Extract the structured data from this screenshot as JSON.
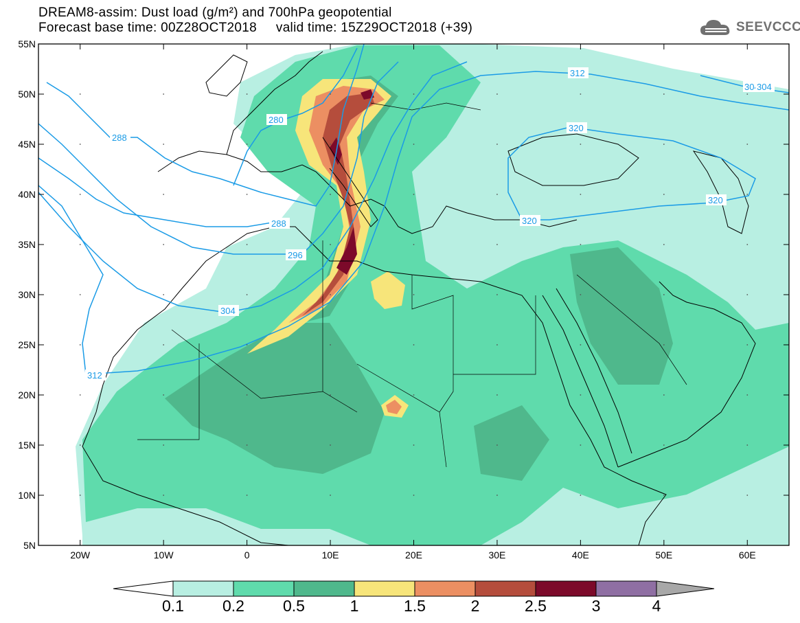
{
  "header": {
    "line1": "DREAM8-assim: Dust load (g/m²) and 700hPa geopotential",
    "line2_left": "Forecast base time: 00Z28OCT2018",
    "line2_right": "valid time: 15Z29OCT2018 (+39)"
  },
  "logo": {
    "text": "SEEVCCC",
    "icon": "cloud-icon"
  },
  "map": {
    "lon_range": [
      -25,
      65
    ],
    "lat_range": [
      5,
      55
    ],
    "lon_ticks": [
      {
        "v": -20,
        "label": "20W"
      },
      {
        "v": -10,
        "label": "10W"
      },
      {
        "v": 0,
        "label": "0"
      },
      {
        "v": 10,
        "label": "10E"
      },
      {
        "v": 20,
        "label": "20E"
      },
      {
        "v": 30,
        "label": "30E"
      },
      {
        "v": 40,
        "label": "40E"
      },
      {
        "v": 50,
        "label": "50E"
      },
      {
        "v": 60,
        "label": "60E"
      }
    ],
    "lat_ticks": [
      {
        "v": 55,
        "label": "55N"
      },
      {
        "v": 50,
        "label": "50N"
      },
      {
        "v": 45,
        "label": "45N"
      },
      {
        "v": 40,
        "label": "40N"
      },
      {
        "v": 35,
        "label": "35N"
      },
      {
        "v": 30,
        "label": "30N"
      },
      {
        "v": 25,
        "label": "25N"
      },
      {
        "v": 20,
        "label": "20N"
      },
      {
        "v": 15,
        "label": "15N"
      },
      {
        "v": 10,
        "label": "10N"
      },
      {
        "v": 5,
        "label": "5N"
      }
    ],
    "contour_labels": [
      "280",
      "288",
      "288",
      "296",
      "304",
      "312",
      "312",
      "304",
      "304",
      "320",
      "320",
      "320"
    ],
    "colors": {
      "c1": "#b8efe2",
      "c2": "#5fdbac",
      "c3": "#4fb88c",
      "c4": "#f7e57a",
      "c5": "#ec8f62",
      "c6": "#b54d3c",
      "c7": "#7c0a2a",
      "contour": "#1a9be6",
      "coast": "#000000"
    }
  },
  "colorbar": {
    "labels": [
      "0.1",
      "0.2",
      "0.5",
      "1",
      "1.5",
      "2",
      "2.5",
      "3",
      "4"
    ],
    "colors": [
      "#b8efe2",
      "#5fdbac",
      "#4fb88c",
      "#f7e57a",
      "#ec8f62",
      "#b54d3c",
      "#7c0a2a",
      "#8f6fa3"
    ],
    "left_arrow_color": "#ffffff",
    "right_arrow_color": "#a8a8a8"
  }
}
